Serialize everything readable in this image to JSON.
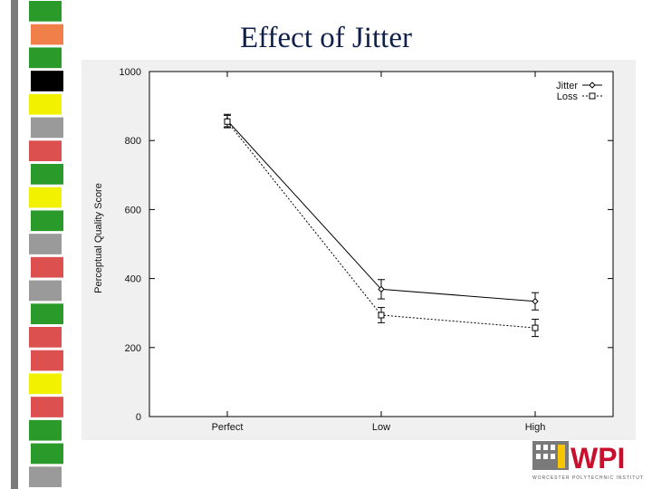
{
  "slide": {
    "title": "Effect of Jitter"
  },
  "logo": {
    "text": "WPI",
    "subtitle": "WORCESTER POLYTECHNIC INSTITUTE",
    "colors": {
      "red": "#c8102e",
      "yellow": "#f7c600",
      "gray": "#7a7a7a"
    }
  },
  "decor": {
    "stripe_colors": [
      "#2a9a2a",
      "#f07f4a",
      "#2a9a2a",
      "#000000",
      "#f2f200",
      "#9a9a9a",
      "#dd5050",
      "#2a9a2a",
      "#f2f200",
      "#2a9a2a",
      "#9a9a9a",
      "#dd5050",
      "#9a9a9a",
      "#2a9a2a",
      "#dd5050",
      "#dd5050",
      "#f2f200",
      "#dd5050",
      "#2a9a2a",
      "#2a9a2a",
      "#9a9a9a"
    ]
  },
  "chart_data": {
    "type": "line",
    "title": "",
    "xlabel": "",
    "ylabel": "Perceptual Quality Score",
    "categories": [
      "Perfect",
      "Low",
      "High"
    ],
    "ylim": [
      0,
      1000
    ],
    "yticks": [
      "0",
      "200",
      "400",
      "600",
      "800",
      "1000"
    ],
    "legend_position": "top-right",
    "grid": false,
    "series": [
      {
        "name": "Jitter",
        "values": [
          858,
          369,
          334
        ],
        "error": [
          18,
          28,
          25
        ],
        "line_style": "solid",
        "marker": "diamond"
      },
      {
        "name": "Loss",
        "values": [
          855,
          294,
          257
        ],
        "error": [
          18,
          22,
          25
        ],
        "line_style": "dotted",
        "marker": "square"
      }
    ]
  }
}
